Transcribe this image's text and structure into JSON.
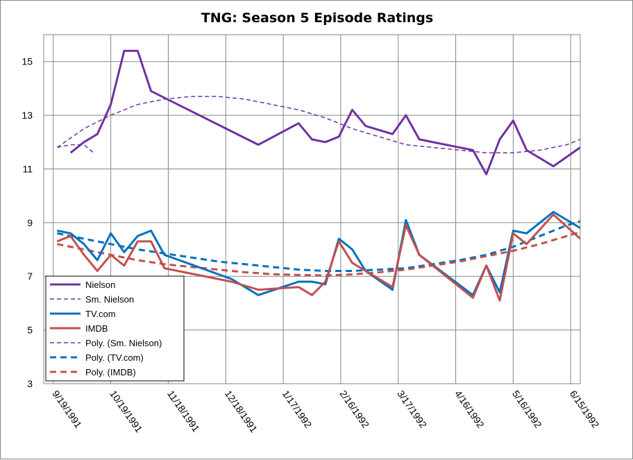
{
  "chart_data": {
    "type": "line",
    "title": "TNG: Season 5 Episode Ratings",
    "xlabel": "",
    "ylabel": "",
    "x_domain": [
      "1991-09-14",
      "1992-06-20"
    ],
    "ylim": [
      3,
      16
    ],
    "y_ticks": [
      3,
      5,
      7,
      9,
      11,
      13,
      15
    ],
    "x_ticks": [
      "9/19/1991",
      "10/19/1991",
      "11/18/1991",
      "12/18/1991",
      "1/17/1992",
      "2/16/1992",
      "3/17/1992",
      "4/16/1992",
      "5/16/1992",
      "6/15/1992"
    ],
    "x_tick_dates": [
      "1991-09-19",
      "1991-10-19",
      "1991-11-18",
      "1991-12-18",
      "1992-01-17",
      "1992-02-16",
      "1992-03-17",
      "1992-04-16",
      "1992-05-16",
      "1992-06-15"
    ],
    "grid": "vertical and horizontal",
    "legend_position": "bottom-left",
    "series": [
      {
        "name": "Nielson",
        "color": "#7030A0",
        "style": "solid",
        "width": 3,
        "points": [
          [
            "1991-09-28",
            11.6
          ],
          [
            "1991-10-05",
            12.0
          ],
          [
            "1991-10-12",
            12.3
          ],
          [
            "1991-10-19",
            13.4
          ],
          [
            "1991-10-26",
            15.4
          ],
          [
            "1991-11-02",
            15.4
          ],
          [
            "1991-11-09",
            13.9
          ],
          [
            "1992-01-04",
            11.9
          ],
          [
            "1992-01-25",
            12.7
          ],
          [
            "1992-02-01",
            12.1
          ],
          [
            "1992-02-08",
            12.0
          ],
          [
            "1992-02-15",
            12.2
          ],
          [
            "1992-02-22",
            13.2
          ],
          [
            "1992-02-29",
            12.6
          ],
          [
            "1992-03-14",
            12.3
          ],
          [
            "1992-03-21",
            13.0
          ],
          [
            "1992-03-28",
            12.1
          ],
          [
            "1992-04-25",
            11.7
          ],
          [
            "1992-05-02",
            10.8
          ],
          [
            "1992-05-09",
            12.1
          ],
          [
            "1992-05-16",
            12.8
          ],
          [
            "1992-05-23",
            11.7
          ],
          [
            "1992-06-06",
            11.1
          ],
          [
            "1992-06-20",
            11.8
          ]
        ]
      },
      {
        "name": "Sm. Nielson",
        "color": "#7030A0",
        "style": "dash",
        "width": 1.5,
        "points": [
          [
            "1991-09-21",
            11.8
          ],
          [
            "1991-09-28",
            11.9
          ],
          [
            "1991-10-05",
            11.9
          ],
          [
            "1991-10-10",
            11.6
          ]
        ]
      },
      {
        "name": "TV.com",
        "color": "#0070C0",
        "style": "solid",
        "width": 3,
        "points": [
          [
            "1991-09-21",
            8.7
          ],
          [
            "1991-09-28",
            8.6
          ],
          [
            "1991-10-05",
            8.2
          ],
          [
            "1991-10-12",
            7.6
          ],
          [
            "1991-10-19",
            8.6
          ],
          [
            "1991-10-26",
            7.9
          ],
          [
            "1991-11-02",
            8.5
          ],
          [
            "1991-11-09",
            8.7
          ],
          [
            "1991-11-16",
            7.8
          ],
          [
            "1991-12-21",
            6.9
          ],
          [
            "1992-01-04",
            6.3
          ],
          [
            "1992-01-25",
            6.8
          ],
          [
            "1992-02-01",
            6.8
          ],
          [
            "1992-02-08",
            6.7
          ],
          [
            "1992-02-15",
            8.4
          ],
          [
            "1992-02-22",
            8.0
          ],
          [
            "1992-02-29",
            7.2
          ],
          [
            "1992-03-14",
            6.5
          ],
          [
            "1992-03-21",
            9.1
          ],
          [
            "1992-03-28",
            7.8
          ],
          [
            "1992-04-25",
            6.3
          ],
          [
            "1992-05-02",
            7.4
          ],
          [
            "1992-05-09",
            6.4
          ],
          [
            "1992-05-16",
            8.7
          ],
          [
            "1992-05-23",
            8.6
          ],
          [
            "1992-06-06",
            9.4
          ],
          [
            "1992-06-20",
            8.8
          ]
        ]
      },
      {
        "name": "IMDB",
        "color": "#C0504D",
        "style": "solid",
        "width": 3,
        "points": [
          [
            "1991-09-21",
            8.3
          ],
          [
            "1991-09-28",
            8.5
          ],
          [
            "1991-10-05",
            7.8
          ],
          [
            "1991-10-12",
            7.2
          ],
          [
            "1991-10-19",
            7.8
          ],
          [
            "1991-10-26",
            7.4
          ],
          [
            "1991-11-02",
            8.3
          ],
          [
            "1991-11-09",
            8.3
          ],
          [
            "1991-11-16",
            7.3
          ],
          [
            "1991-12-21",
            6.8
          ],
          [
            "1992-01-04",
            6.5
          ],
          [
            "1992-01-25",
            6.6
          ],
          [
            "1992-02-01",
            6.3
          ],
          [
            "1992-02-08",
            6.8
          ],
          [
            "1992-02-15",
            8.3
          ],
          [
            "1992-02-22",
            7.5
          ],
          [
            "1992-02-29",
            7.2
          ],
          [
            "1992-03-14",
            6.6
          ],
          [
            "1992-03-21",
            8.9
          ],
          [
            "1992-03-28",
            7.8
          ],
          [
            "1992-04-25",
            6.2
          ],
          [
            "1992-05-02",
            7.4
          ],
          [
            "1992-05-09",
            6.1
          ],
          [
            "1992-05-16",
            8.6
          ],
          [
            "1992-05-23",
            8.2
          ],
          [
            "1992-06-06",
            9.3
          ],
          [
            "1992-06-20",
            8.4
          ]
        ]
      },
      {
        "name": "Poly. (Sm. Nielson)",
        "color": "#7030A0",
        "style": "dash",
        "width": 1.5,
        "points": [
          [
            "1991-09-21",
            11.8
          ],
          [
            "1991-10-05",
            12.5
          ],
          [
            "1991-10-19",
            13.0
          ],
          [
            "1991-11-02",
            13.4
          ],
          [
            "1991-11-16",
            13.6
          ],
          [
            "1991-11-30",
            13.7
          ],
          [
            "1991-12-14",
            13.7
          ],
          [
            "1991-12-28",
            13.6
          ],
          [
            "1992-01-11",
            13.4
          ],
          [
            "1992-01-25",
            13.2
          ],
          [
            "1992-02-08",
            12.9
          ],
          [
            "1992-02-22",
            12.5
          ],
          [
            "1992-03-07",
            12.2
          ],
          [
            "1992-03-21",
            11.9
          ],
          [
            "1992-04-04",
            11.8
          ],
          [
            "1992-04-18",
            11.7
          ],
          [
            "1992-05-02",
            11.6
          ],
          [
            "1992-05-16",
            11.6
          ],
          [
            "1992-05-30",
            11.7
          ],
          [
            "1992-06-13",
            11.9
          ],
          [
            "1992-06-20",
            12.1
          ]
        ]
      },
      {
        "name": "Poly. (TV.com)",
        "color": "#0070C0",
        "style": "dash",
        "width": 3,
        "points": [
          [
            "1991-09-21",
            8.6
          ],
          [
            "1991-10-05",
            8.4
          ],
          [
            "1991-10-19",
            8.2
          ],
          [
            "1991-11-02",
            8.0
          ],
          [
            "1991-11-16",
            7.85
          ],
          [
            "1991-11-30",
            7.7
          ],
          [
            "1991-12-14",
            7.55
          ],
          [
            "1991-12-28",
            7.45
          ],
          [
            "1992-01-11",
            7.35
          ],
          [
            "1992-01-25",
            7.25
          ],
          [
            "1992-02-08",
            7.2
          ],
          [
            "1992-02-22",
            7.2
          ],
          [
            "1992-03-07",
            7.25
          ],
          [
            "1992-03-21",
            7.3
          ],
          [
            "1992-04-04",
            7.45
          ],
          [
            "1992-04-18",
            7.6
          ],
          [
            "1992-05-02",
            7.8
          ],
          [
            "1992-05-16",
            8.1
          ],
          [
            "1992-05-30",
            8.5
          ],
          [
            "1992-06-13",
            8.9
          ],
          [
            "1992-06-20",
            9.05
          ]
        ]
      },
      {
        "name": "Poly. (IMDB)",
        "color": "#C0504D",
        "style": "dash",
        "width": 3,
        "points": [
          [
            "1991-09-21",
            8.2
          ],
          [
            "1991-10-05",
            8.0
          ],
          [
            "1991-10-19",
            7.8
          ],
          [
            "1991-11-02",
            7.6
          ],
          [
            "1991-11-16",
            7.45
          ],
          [
            "1991-11-30",
            7.35
          ],
          [
            "1991-12-14",
            7.25
          ],
          [
            "1991-12-28",
            7.15
          ],
          [
            "1992-01-11",
            7.08
          ],
          [
            "1992-01-25",
            7.05
          ],
          [
            "1992-02-08",
            7.03
          ],
          [
            "1992-02-22",
            7.07
          ],
          [
            "1992-03-07",
            7.15
          ],
          [
            "1992-03-21",
            7.25
          ],
          [
            "1992-04-04",
            7.4
          ],
          [
            "1992-04-18",
            7.55
          ],
          [
            "1992-05-02",
            7.75
          ],
          [
            "1992-05-16",
            7.95
          ],
          [
            "1992-05-30",
            8.2
          ],
          [
            "1992-06-13",
            8.5
          ],
          [
            "1992-06-20",
            8.65
          ]
        ]
      }
    ]
  }
}
